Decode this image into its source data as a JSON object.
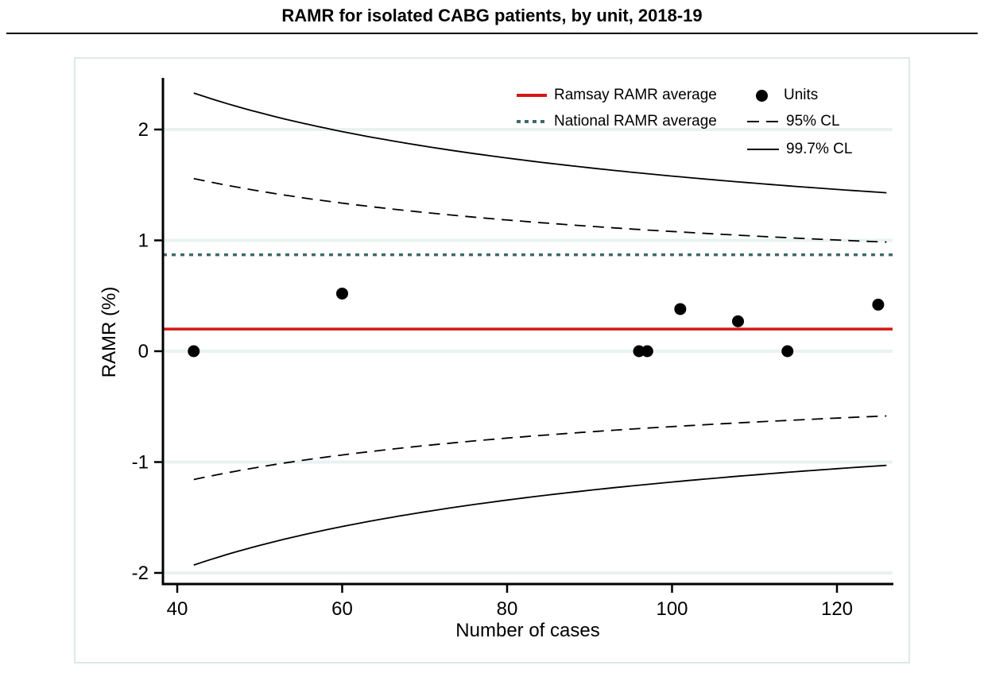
{
  "title": "RAMR for isolated CABG patients, by unit, 2018-19",
  "chart_data": {
    "type": "scatter",
    "subtype": "funnel-plot",
    "title": "RAMR for isolated CABG patients, by unit, 2018-19",
    "xlabel": "Number of cases",
    "ylabel": "RAMR (%)",
    "xlim": [
      38.3,
      126.8
    ],
    "ylim": [
      -2.1,
      2.47
    ],
    "grid": "horizontal-light",
    "x_ticks": [
      {
        "value": 40,
        "label": "40"
      },
      {
        "value": 60,
        "label": "60"
      },
      {
        "value": 80,
        "label": "80"
      },
      {
        "value": 100,
        "label": "100"
      },
      {
        "value": 120,
        "label": "120"
      }
    ],
    "y_ticks": [
      {
        "value": 2,
        "label": "2"
      },
      {
        "value": 1,
        "label": "1"
      },
      {
        "value": 0,
        "label": "0"
      },
      {
        "value": -1,
        "label": "-1"
      },
      {
        "value": -2,
        "label": "-2"
      }
    ],
    "units": [
      {
        "cases": 42,
        "ramr": 0.0
      },
      {
        "cases": 60,
        "ramr": 0.52
      },
      {
        "cases": 96,
        "ramr": 0.0
      },
      {
        "cases": 97,
        "ramr": 0.0
      },
      {
        "cases": 101,
        "ramr": 0.38
      },
      {
        "cases": 108,
        "ramr": 0.27
      },
      {
        "cases": 114,
        "ramr": 0.0
      },
      {
        "cases": 125,
        "ramr": 0.42
      }
    ],
    "ramsay_ramr_average": 0.2,
    "national_ramr_average": 0.87,
    "control_limits": {
      "formula": "center +/- k / sqrt(n)",
      "center": 0.2,
      "k_95": 8.8,
      "k_997": 13.8,
      "n_start": 42,
      "n_end": 126,
      "upper_95_at_start": 1.56,
      "upper_95_at_end": 0.98,
      "lower_95_at_start": -1.16,
      "lower_95_at_end": -0.58,
      "upper_997_at_start": 2.33,
      "upper_997_at_end": 1.43,
      "lower_997_at_start": -1.93,
      "lower_997_at_end": -1.03
    },
    "legend": {
      "position": "top-right-inside",
      "items": [
        {
          "label": "Ramsay RAMR average",
          "swatch": "red-solid-line"
        },
        {
          "label": "National RAMR average",
          "swatch": "teal-dotted-line"
        },
        {
          "label": "Units",
          "swatch": "black-filled-circle"
        },
        {
          "label": "95% CL",
          "swatch": "black-dashed-line"
        },
        {
          "label": "99.7% CL",
          "swatch": "black-solid-line"
        }
      ]
    },
    "colors": {
      "ramsay": "#d41717",
      "national": "#3e6a6a",
      "units": "#000000",
      "limits": "#000000",
      "grid": "#e9f2f1",
      "panel_border": "#dde9e8",
      "background": "#ffffff"
    }
  }
}
